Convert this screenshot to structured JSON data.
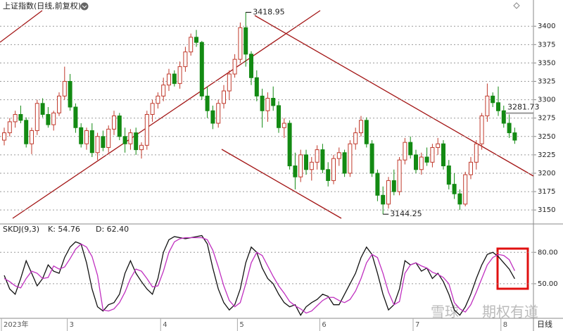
{
  "chart_data": [
    {
      "type": "candlestick",
      "title": "上证指数(日线,前复权)",
      "categories": [
        "2023年",
        null,
        null,
        null,
        null,
        null,
        null,
        null,
        null,
        null,
        null,
        null,
        "3",
        null,
        null,
        null,
        null,
        null,
        null,
        null,
        null,
        null,
        null,
        null,
        null,
        null,
        null,
        null,
        null,
        "4",
        null,
        null,
        null,
        null,
        null,
        null,
        null,
        null,
        null,
        null,
        null,
        null,
        null,
        "5",
        null,
        null,
        null,
        null,
        null,
        null,
        null,
        null,
        null,
        null,
        null,
        null,
        null,
        null,
        "6",
        null,
        null,
        null,
        null,
        null,
        null,
        null,
        null,
        null,
        null,
        null,
        null,
        null,
        null,
        null,
        null,
        "7",
        null,
        null,
        null,
        null,
        null,
        null,
        null,
        null,
        null,
        null,
        null,
        null,
        null,
        null,
        null,
        "8",
        null,
        null,
        null
      ],
      "ohlc": [
        [
          3245,
          3262,
          3238,
          3255
        ],
        [
          3255,
          3275,
          3250,
          3270
        ],
        [
          3270,
          3285,
          3262,
          3280
        ],
        [
          3280,
          3292,
          3268,
          3272
        ],
        [
          3272,
          3276,
          3235,
          3240
        ],
        [
          3240,
          3262,
          3226,
          3258
        ],
        [
          3258,
          3300,
          3252,
          3295
        ],
        [
          3295,
          3302,
          3276,
          3280
        ],
        [
          3280,
          3290,
          3262,
          3266
        ],
        [
          3266,
          3285,
          3258,
          3282
        ],
        [
          3282,
          3310,
          3278,
          3305
        ],
        [
          3305,
          3345,
          3300,
          3325
        ],
        [
          3325,
          3335,
          3285,
          3290
        ],
        [
          3290,
          3295,
          3255,
          3262
        ],
        [
          3262,
          3268,
          3235,
          3240
        ],
        [
          3240,
          3262,
          3232,
          3258
        ],
        [
          3258,
          3268,
          3222,
          3228
        ],
        [
          3228,
          3255,
          3218,
          3250
        ],
        [
          3250,
          3258,
          3230,
          3235
        ],
        [
          3235,
          3265,
          3228,
          3260
        ],
        [
          3260,
          3285,
          3252,
          3278
        ],
        [
          3278,
          3282,
          3245,
          3250
        ],
        [
          3250,
          3262,
          3228,
          3240
        ],
        [
          3240,
          3260,
          3232,
          3255
        ],
        [
          3255,
          3262,
          3225,
          3232
        ],
        [
          3232,
          3242,
          3220,
          3238
        ],
        [
          3238,
          3285,
          3232,
          3280
        ],
        [
          3280,
          3300,
          3270,
          3295
        ],
        [
          3295,
          3310,
          3288,
          3305
        ],
        [
          3305,
          3330,
          3298,
          3320
        ],
        [
          3320,
          3342,
          3312,
          3335
        ],
        [
          3335,
          3340,
          3318,
          3322
        ],
        [
          3322,
          3352,
          3315,
          3345
        ],
        [
          3345,
          3372,
          3338,
          3365
        ],
        [
          3365,
          3390,
          3360,
          3385
        ],
        [
          3385,
          3395,
          3372,
          3378
        ],
        [
          3378,
          3380,
          3300,
          3305
        ],
        [
          3305,
          3318,
          3275,
          3285
        ],
        [
          3285,
          3292,
          3260,
          3268
        ],
        [
          3268,
          3300,
          3262,
          3295
        ],
        [
          3295,
          3320,
          3288,
          3312
        ],
        [
          3312,
          3340,
          3300,
          3335
        ],
        [
          3335,
          3362,
          3330,
          3355
        ],
        [
          3355,
          3405,
          3350,
          3398
        ],
        [
          3398,
          3418.95,
          3345,
          3362
        ],
        [
          3362,
          3366,
          3320,
          3330
        ],
        [
          3330,
          3340,
          3298,
          3305
        ],
        [
          3305,
          3315,
          3262,
          3285
        ],
        [
          3285,
          3310,
          3270,
          3302
        ],
        [
          3302,
          3318,
          3285,
          3292
        ],
        [
          3292,
          3298,
          3255,
          3262
        ],
        [
          3262,
          3275,
          3248,
          3268
        ],
        [
          3268,
          3272,
          3205,
          3210
        ],
        [
          3210,
          3228,
          3178,
          3195
        ],
        [
          3195,
          3232,
          3188,
          3225
        ],
        [
          3225,
          3232,
          3198,
          3205
        ],
        [
          3205,
          3222,
          3190,
          3215
        ],
        [
          3215,
          3238,
          3205,
          3232
        ],
        [
          3232,
          3240,
          3200,
          3205
        ],
        [
          3205,
          3215,
          3182,
          3190
        ],
        [
          3190,
          3225,
          3185,
          3220
        ],
        [
          3220,
          3235,
          3210,
          3228
        ],
        [
          3228,
          3232,
          3195,
          3200
        ],
        [
          3200,
          3245,
          3195,
          3240
        ],
        [
          3240,
          3262,
          3232,
          3255
        ],
        [
          3255,
          3278,
          3250,
          3272
        ],
        [
          3272,
          3276,
          3235,
          3240
        ],
        [
          3240,
          3245,
          3195,
          3200
        ],
        [
          3200,
          3205,
          3162,
          3170
        ],
        [
          3170,
          3182,
          3144.25,
          3158
        ],
        [
          3158,
          3195,
          3152,
          3190
        ],
        [
          3190,
          3205,
          3170,
          3175
        ],
        [
          3175,
          3222,
          3170,
          3218
        ],
        [
          3218,
          3248,
          3212,
          3242
        ],
        [
          3242,
          3250,
          3220,
          3225
        ],
        [
          3225,
          3232,
          3200,
          3205
        ],
        [
          3205,
          3228,
          3198,
          3222
        ],
        [
          3222,
          3235,
          3210,
          3215
        ],
        [
          3215,
          3240,
          3208,
          3235
        ],
        [
          3235,
          3248,
          3225,
          3240
        ],
        [
          3240,
          3245,
          3205,
          3210
        ],
        [
          3210,
          3218,
          3178,
          3185
        ],
        [
          3185,
          3200,
          3165,
          3172
        ],
        [
          3172,
          3178,
          3150,
          3158
        ],
        [
          3158,
          3202,
          3155,
          3198
        ],
        [
          3198,
          3222,
          3192,
          3215
        ],
        [
          3215,
          3245,
          3205,
          3240
        ],
        [
          3240,
          3282,
          3232,
          3278
        ],
        [
          3278,
          3322,
          3270,
          3305
        ],
        [
          3305,
          3310,
          3290,
          3296
        ],
        [
          3296,
          3318,
          3278,
          3285
        ],
        [
          3285,
          3292,
          3262,
          3268
        ],
        [
          3268,
          3280,
          3248,
          3255
        ],
        [
          3255,
          3262,
          3240,
          3245
        ]
      ],
      "up_color": "#c0392b",
      "down_color": "#138a13",
      "last_price": 3281.73,
      "ylim": [
        3131,
        3428
      ],
      "yticks": [
        3150,
        3175,
        3200,
        3225,
        3250,
        3275,
        3300,
        3325,
        3350,
        3375,
        3400
      ],
      "grid": true
    },
    {
      "type": "line",
      "title": "SKDJ(9,3)",
      "xlabel": "日线",
      "series": [
        {
          "name": "K",
          "label": "K: 54.76",
          "color": "#111111",
          "values": [
            58,
            45,
            40,
            55,
            72,
            60,
            48,
            55,
            68,
            62,
            60,
            75,
            85,
            90,
            88,
            70,
            45,
            28,
            24,
            30,
            32,
            40,
            60,
            72,
            60,
            52,
            45,
            40,
            55,
            80,
            92,
            95,
            94,
            93,
            94,
            95,
            96,
            88,
            65,
            45,
            32,
            25,
            30,
            45,
            70,
            85,
            80,
            65,
            55,
            50,
            40,
            32,
            28,
            30,
            20,
            28,
            32,
            35,
            40,
            38,
            30,
            30,
            40,
            50,
            60,
            75,
            85,
            78,
            60,
            40,
            25,
            30,
            45,
            72,
            68,
            70,
            62,
            65,
            55,
            60,
            52,
            40,
            25,
            20,
            28,
            40,
            55,
            68,
            78,
            80,
            76,
            70,
            64,
            54.76
          ]
        },
        {
          "name": "D",
          "label": "D: 62.40",
          "color": "#c030c0",
          "values": [
            55,
            52,
            48,
            46,
            55,
            62,
            60,
            55,
            56,
            67,
            64,
            66,
            74,
            83,
            88,
            85,
            76,
            58,
            25,
            24,
            26,
            32,
            42,
            55,
            64,
            62,
            55,
            47,
            48,
            62,
            80,
            90,
            93,
            94,
            94,
            94,
            94,
            92,
            82,
            66,
            48,
            34,
            28,
            32,
            50,
            70,
            80,
            77,
            67,
            57,
            48,
            41,
            33,
            29,
            26,
            22,
            24,
            29,
            34,
            37,
            37,
            34,
            32,
            35,
            43,
            55,
            70,
            78,
            75,
            60,
            42,
            30,
            33,
            60,
            68,
            70,
            67,
            65,
            61,
            59,
            56,
            50,
            32,
            26,
            23,
            30,
            42,
            55,
            68,
            75,
            78,
            77,
            73,
            62.4
          ]
        }
      ],
      "ylim": [
        17,
        97
      ],
      "yticks": [
        {
          "value": 50,
          "label": "50.00"
        },
        {
          "value": 80,
          "label": "80.00"
        }
      ],
      "grid": true
    }
  ],
  "watermark": [
    "雪球",
    "期权有道"
  ]
}
